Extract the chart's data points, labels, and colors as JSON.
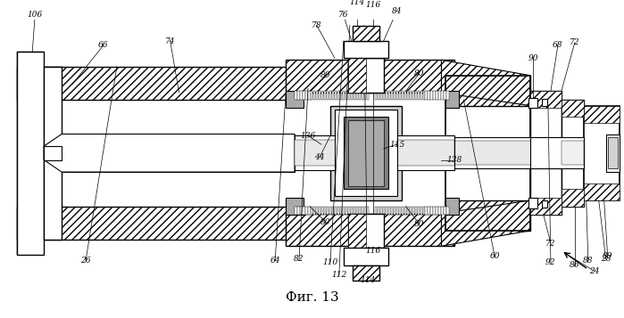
{
  "title": "Фиг. 13",
  "bg_color": "#ffffff",
  "line_color": "#000000",
  "fig_width": 6.99,
  "fig_height": 3.57,
  "dpi": 100
}
